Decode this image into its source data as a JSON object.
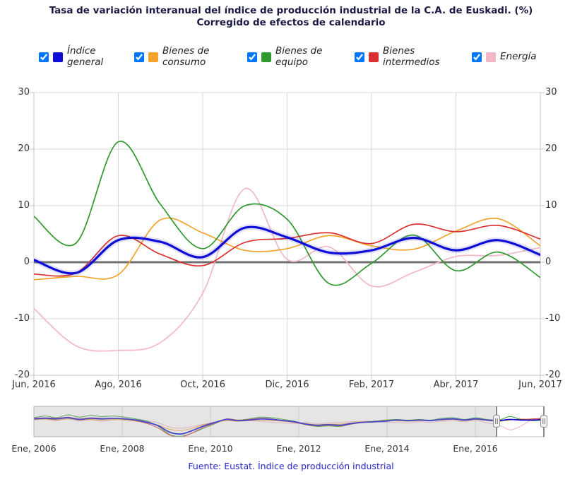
{
  "title": {
    "line1": "Tasa de variación interanual del índice de producción industrial de la C.A. de Euskadi. (%)",
    "line2": "Corregido de efectos de calendario"
  },
  "footer": {
    "text": "Fuente: Eustat. Índice de producción industrial"
  },
  "legend": {
    "position": "top",
    "items": [
      {
        "label": "Índice general",
        "color": "#0d0dd6",
        "checked": true
      },
      {
        "label": "Bienes de consumo",
        "color": "#f2a32b",
        "checked": true
      },
      {
        "label": "Bienes de equipo",
        "color": "#2f992f",
        "checked": true
      },
      {
        "label": "Bienes intermedios",
        "color": "#d93030",
        "checked": true
      },
      {
        "label": "Energía",
        "color": "#f2b7c6",
        "checked": true
      }
    ]
  },
  "chart_data": {
    "type": "line",
    "title": "Tasa de variación interanual del índice de producción industrial de la C.A. de Euskadi. (%)",
    "subtitle": "Corregido de efectos de calendario",
    "xlabel": "",
    "ylabel": "",
    "ylim": [
      -20,
      30
    ],
    "grid": true,
    "y_ticks": [
      30,
      20,
      10,
      0,
      -10,
      -20
    ],
    "categories": [
      "Jun, 2016",
      "Jul, 2016",
      "Ago, 2016",
      "Sep, 2016",
      "Oct, 2016",
      "Nov, 2016",
      "Dic, 2016",
      "Ene, 2017",
      "Feb, 2017",
      "Mar, 2017",
      "Abr, 2017",
      "May, 2017",
      "Jun, 2017"
    ],
    "x_tick_labels": [
      "Jun, 2016",
      "Ago, 2016",
      "Oct, 2016",
      "Dic, 2016",
      "Feb, 2017",
      "Abr, 2017",
      "Jun, 2017"
    ],
    "series": [
      {
        "name": "Energía",
        "color": "#f2b7c6",
        "width": 1.7,
        "values": [
          -8.2,
          -14.8,
          -15.6,
          -14.2,
          -5.5,
          13.0,
          0.5,
          2.7,
          -4.2,
          -1.8,
          1.0,
          1.2,
          2.6
        ]
      },
      {
        "name": "Bienes de consumo",
        "color": "#f2a32b",
        "width": 1.7,
        "values": [
          -3.1,
          -2.5,
          -2.2,
          7.5,
          5.2,
          2.1,
          2.4,
          4.7,
          2.9,
          2.3,
          5.5,
          7.7,
          2.9
        ]
      },
      {
        "name": "Bienes de equipo",
        "color": "#2f992f",
        "width": 1.7,
        "values": [
          8.1,
          3.4,
          21.3,
          10.2,
          2.4,
          10.0,
          7.6,
          -3.8,
          -0.2,
          4.8,
          -1.5,
          1.8,
          -2.7
        ]
      },
      {
        "name": "Bienes intermedios",
        "color": "#d93030",
        "width": 1.7,
        "values": [
          -2.1,
          -1.9,
          4.7,
          1.4,
          -0.6,
          3.5,
          4.2,
          5.2,
          3.3,
          6.7,
          5.4,
          6.5,
          4.1
        ]
      },
      {
        "name": "Índice general",
        "color": "#0d0dd6",
        "width": 3.2,
        "values": [
          0.4,
          -1.9,
          3.9,
          3.6,
          0.9,
          6.1,
          4.4,
          1.7,
          2.1,
          4.3,
          2.1,
          3.9,
          1.3
        ]
      }
    ],
    "navigator": {
      "x_tick_labels": [
        "Ene, 2006",
        "Ene, 2008",
        "Ene, 2010",
        "Ene, 2012",
        "Ene, 2014",
        "Ene, 2016"
      ],
      "selected_range": {
        "from": "Jun, 2016",
        "to": "Jun, 2017"
      },
      "series": [
        {
          "name": "Energía",
          "color": "#f2b7c6",
          "values": [
            2,
            3,
            1,
            4,
            1,
            2,
            0,
            2,
            3,
            2,
            1,
            -3,
            -10,
            -12,
            -9,
            -5,
            -1,
            2,
            1,
            1,
            0,
            -2,
            -3,
            -4,
            -2,
            -4,
            -3,
            -2,
            -1,
            0,
            -1,
            -2,
            -2,
            -3,
            -1,
            -2,
            0,
            1,
            -1,
            2,
            -3,
            -6,
            -15,
            -8,
            3,
            1
          ]
        },
        {
          "name": "Bienes de consumo",
          "color": "#f2a32b",
          "values": [
            3,
            4,
            2,
            4,
            2,
            3,
            2,
            3,
            2,
            0,
            -3,
            -7,
            -14,
            -16,
            -12,
            -6,
            -2,
            1,
            0,
            1,
            2,
            1,
            0,
            -2,
            -4,
            -6,
            -5,
            -5,
            -3,
            -1,
            0,
            1,
            1,
            0,
            1,
            1,
            2,
            3,
            1,
            3,
            1,
            0,
            2,
            4,
            3,
            5
          ]
        },
        {
          "name": "Bienes de equipo",
          "color": "#2f992f",
          "values": [
            6,
            9,
            6,
            11,
            7,
            10,
            8,
            9,
            7,
            4,
            0,
            -9,
            -23,
            -26,
            -20,
            -12,
            -4,
            4,
            2,
            4,
            7,
            6,
            3,
            0,
            -6,
            -9,
            -8,
            -9,
            -5,
            -2,
            0,
            2,
            3,
            2,
            3,
            2,
            5,
            6,
            3,
            6,
            3,
            2,
            8,
            3,
            1,
            2
          ]
        },
        {
          "name": "Bienes intermedios",
          "color": "#d93030",
          "values": [
            5,
            6,
            5,
            7,
            4,
            6,
            5,
            5,
            4,
            1,
            -4,
            -12,
            -24,
            -27,
            -20,
            -10,
            -3,
            4,
            2,
            3,
            5,
            4,
            1,
            -2,
            -6,
            -8,
            -7,
            -8,
            -5,
            -2,
            -1,
            1,
            2,
            1,
            2,
            1,
            3,
            4,
            2,
            4,
            2,
            1,
            3,
            3,
            4,
            5
          ]
        },
        {
          "name": "Índice general",
          "color": "#0d0dd6",
          "values": [
            4,
            5,
            4,
            6,
            3,
            5,
            4,
            5,
            4,
            2,
            -2,
            -8,
            -19,
            -22,
            -16,
            -8,
            -2,
            3,
            1,
            2,
            4,
            3,
            1,
            -1,
            -5,
            -7,
            -6,
            -7,
            -4,
            -2,
            -1,
            0,
            2,
            1,
            2,
            1,
            3,
            4,
            2,
            4,
            2,
            1,
            3,
            2,
            2,
            3
          ]
        }
      ]
    }
  }
}
